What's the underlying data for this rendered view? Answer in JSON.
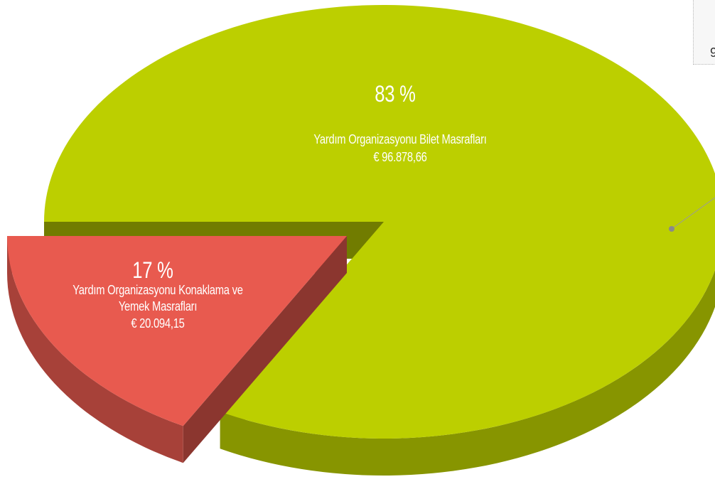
{
  "chart_data": {
    "type": "pie",
    "categories": [
      "Yardım Organizasyonu Bilet Masrafları",
      "Yardım Organizasyonu Konaklama ve Yemek Masrafları"
    ],
    "values": [
      83,
      17
    ],
    "value_labels": [
      "83 %",
      "17 %"
    ],
    "amount_labels": [
      "€ 96.878,66",
      "€ 20.094,15"
    ],
    "colors": [
      "#bccf00",
      "#e85a4f"
    ],
    "tooltip": "9"
  }
}
